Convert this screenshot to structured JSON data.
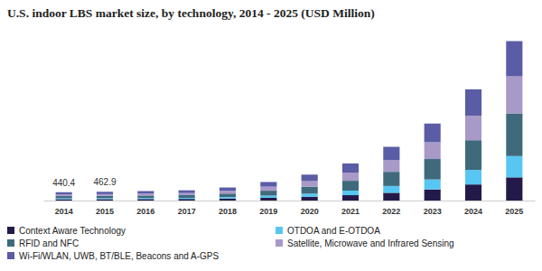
{
  "chart_data": {
    "type": "bar",
    "stacked": true,
    "title": "U.S. indoor LBS market size, by technology, 2014 - 2025 (USD Million)",
    "categories": [
      "2014",
      "2015",
      "2016",
      "2017",
      "2018",
      "2019",
      "2020",
      "2021",
      "2022",
      "2023",
      "2024",
      "2025"
    ],
    "ylim": [
      0,
      8500
    ],
    "tick_labels": "x",
    "legend": "bottom",
    "series": [
      {
        "name": "Context Aware Technology",
        "color": "#241a4a",
        "values": [
          70.2,
          73.5,
          80,
          86,
          105,
          145,
          200,
          285,
          410,
          585,
          850,
          1225
        ]
      },
      {
        "name": "OTDOA and E-OTDOA",
        "color": "#58c6f3",
        "values": [
          45.6,
          48.2,
          52,
          57,
          78,
          115,
          165,
          240,
          360,
          530,
          770,
          1127
        ]
      },
      {
        "name": "RFID and NFC",
        "color": "#3e6a7c",
        "values": [
          120.3,
          126.1,
          136,
          147,
          185,
          260,
          365,
          520,
          750,
          1080,
          1570,
          2254
        ]
      },
      {
        "name": "Satellite, Microwave and Infrared Sensing",
        "color": "#a899c9",
        "values": [
          88.1,
          92.4,
          100,
          108,
          150,
          215,
          300,
          430,
          620,
          890,
          1290,
          1960
        ]
      },
      {
        "name": "Wi-Fi/WLAN, UWB, BT/BLE, Beacons and A-GPS",
        "color": "#5a5ca6",
        "values": [
          116.2,
          122.7,
          132,
          142,
          172,
          245,
          340,
          485,
          700,
          985,
          1400,
          1862
        ]
      }
    ],
    "annotations": [
      {
        "x": "2014",
        "y": 440.4,
        "label": "440.4"
      },
      {
        "x": "2015",
        "y": 462.9,
        "label": "462.9"
      }
    ]
  }
}
